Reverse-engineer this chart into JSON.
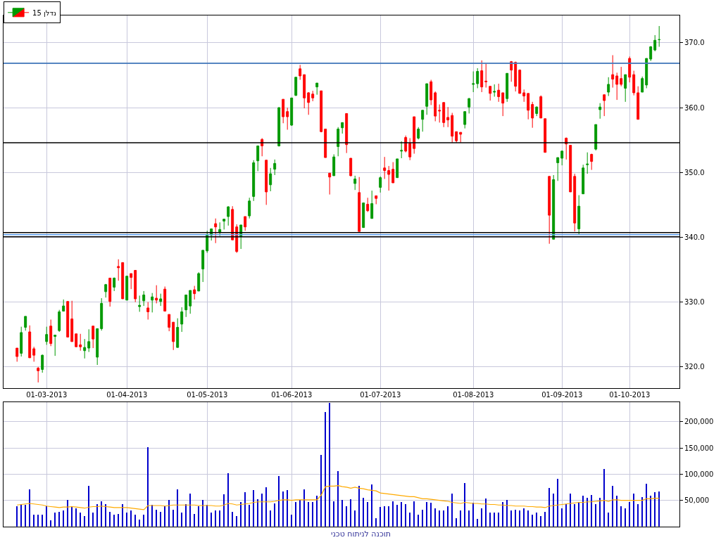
{
  "chart_data": [
    {
      "type": "candlestick",
      "legend": "top left",
      "grid": true,
      "categories": [
        null,
        null,
        null,
        null,
        null,
        null,
        null,
        "01-03-2013",
        null,
        null,
        null,
        null,
        null,
        null,
        null,
        null,
        null,
        null,
        null,
        null,
        null,
        null,
        null,
        null,
        null,
        null,
        "01-04-2013",
        null,
        null,
        null,
        null,
        null,
        null,
        null,
        null,
        null,
        null,
        null,
        null,
        null,
        null,
        null,
        null,
        null,
        null,
        "01-05-2013",
        null,
        null,
        null,
        null,
        null,
        null,
        null,
        null,
        null,
        null,
        null,
        null,
        null,
        null,
        null,
        null,
        null,
        null,
        null,
        "01-06-2013",
        null,
        null,
        null,
        null,
        null,
        null,
        null,
        null,
        null,
        null,
        null,
        null,
        null,
        null,
        null,
        null,
        null,
        null,
        null,
        null,
        "01-07-2013",
        null,
        null,
        null,
        null,
        null,
        null,
        null,
        null,
        null,
        null,
        null,
        null,
        null,
        null,
        null,
        null,
        null,
        null,
        null,
        null,
        null,
        "01-08-2013",
        null,
        null,
        null,
        null,
        null,
        null,
        null,
        null,
        null,
        null,
        null,
        null,
        null,
        null,
        null,
        null,
        null,
        null,
        null,
        null,
        "01-09-2013",
        null,
        null,
        null,
        null,
        null,
        null,
        null,
        null,
        null,
        null,
        null,
        null,
        null,
        null,
        null,
        "01-10-2013",
        null,
        null,
        null,
        null,
        null,
        null,
        null
      ],
      "ylim": [
        316.7,
        374.2
      ],
      "yticks": [
        {
          "value": 320,
          "label": "320.0"
        },
        {
          "value": 330,
          "label": "330.0"
        },
        {
          "value": 340,
          "label": "340.0"
        },
        {
          "value": 350,
          "label": "350.0"
        },
        {
          "value": 360,
          "label": "360.0"
        },
        {
          "value": 370,
          "label": "370.0"
        }
      ],
      "ref_lines": [
        {
          "axis": "y",
          "value": 366.85,
          "color": "#000000"
        },
        {
          "axis": "y",
          "value": 366.85,
          "color": "#5c9ded"
        },
        {
          "axis": "y",
          "value": 340.72,
          "color": "#000000"
        },
        {
          "axis": "y",
          "value": 340.4,
          "color": "#5c9ded"
        },
        {
          "axis": "y",
          "value": 340.07,
          "color": "#000000"
        },
        {
          "axis": "y",
          "value": 354.6,
          "color": "#000000"
        }
      ],
      "series": [
        {
          "name": "נדלן 15",
          "ohlc": [
            [
              322.9,
              322.9,
              320.8,
              321.6
            ],
            [
              322.1,
              326.2,
              321.6,
              325.3
            ],
            [
              326.1,
              327.8,
              325.6,
              327.8
            ],
            [
              325.4,
              326.4,
              321.4,
              321.4
            ],
            [
              322.8,
              323.1,
              320.8,
              321.8
            ],
            [
              319.8,
              320.0,
              317.6,
              319.4
            ],
            [
              319.6,
              321.9,
              319.1,
              321.8
            ],
            [
              323.9,
              326.2,
              323.4,
              325.0
            ],
            [
              326.3,
              327.3,
              323.2,
              323.6
            ],
            [
              324.7,
              324.9,
              321.7,
              324.9
            ],
            [
              325.6,
              328.8,
              325.4,
              328.5
            ],
            [
              328.6,
              330.4,
              328.6,
              329.4
            ],
            [
              330.1,
              330.1,
              324.6,
              324.6
            ],
            [
              327.4,
              330.2,
              323.9,
              323.9
            ],
            [
              325.1,
              325.1,
              323.1,
              323.1
            ],
            [
              323.4,
              325.1,
              322.5,
              323.1
            ],
            [
              322.5,
              324.3,
              321.3,
              323.0
            ],
            [
              322.9,
              325.8,
              322.3,
              323.9
            ],
            [
              326.3,
              326.3,
              322.9,
              324.3
            ],
            [
              321.5,
              325.9,
              320.3,
              325.9
            ],
            [
              325.9,
              330.6,
              325.6,
              329.8
            ],
            [
              331.6,
              332.8,
              330.7,
              332.7
            ],
            [
              333.7,
              333.7,
              329.3,
              330.1
            ],
            [
              332.3,
              333.8,
              331.7,
              333.7
            ],
            [
              335.5,
              336.6,
              333.3,
              335.3
            ],
            [
              336.1,
              336.1,
              330.5,
              330.5
            ],
            [
              330.3,
              334.0,
              330.3,
              334.0
            ],
            [
              334.4,
              334.4,
              332.0,
              333.8
            ],
            [
              334.9,
              334.9,
              330.0,
              330.5
            ],
            [
              329.3,
              331.0,
              328.5,
              329.5
            ],
            [
              330.2,
              331.7,
              329.4,
              331.1
            ],
            [
              329.1,
              330.0,
              327.3,
              328.5
            ],
            [
              330.3,
              331.4,
              328.4,
              330.8
            ],
            [
              330.6,
              332.6,
              329.8,
              330.3
            ],
            [
              330.1,
              331.3,
              329.4,
              330.5
            ],
            [
              332.0,
              332.4,
              328.6,
              328.6
            ],
            [
              328.1,
              328.1,
              325.5,
              326.1
            ],
            [
              326.9,
              326.9,
              322.6,
              323.9
            ],
            [
              323.0,
              327.5,
              323.0,
              326.1
            ],
            [
              326.6,
              329.2,
              325.4,
              328.5
            ],
            [
              328.8,
              331.1,
              327.7,
              331.1
            ],
            [
              329.4,
              331.8,
              328.2,
              331.8
            ],
            [
              331.9,
              332.5,
              330.4,
              331.3
            ],
            [
              331.7,
              334.6,
              331.7,
              334.4
            ],
            [
              335.1,
              338.0,
              333.1,
              338.0
            ],
            [
              337.9,
              341.0,
              337.6,
              340.4
            ],
            [
              340.3,
              341.3,
              339.5,
              341.3
            ],
            [
              342.1,
              342.9,
              339.1,
              341.6
            ],
            [
              340.8,
              342.3,
              340.2,
              341.2
            ],
            [
              342.5,
              342.8,
              341.2,
              342.8
            ],
            [
              343.2,
              344.8,
              341.8,
              344.7
            ],
            [
              344.3,
              344.8,
              339.6,
              339.6
            ],
            [
              341.6,
              342.0,
              337.6,
              337.8
            ],
            [
              340.1,
              341.9,
              338.2,
              341.9
            ],
            [
              343.2,
              343.2,
              341.0,
              341.6
            ],
            [
              343.3,
              346.1,
              342.9,
              345.6
            ],
            [
              346.3,
              351.9,
              345.6,
              351.5
            ],
            [
              351.8,
              354.1,
              350.2,
              354.1
            ],
            [
              355.1,
              355.3,
              352.5,
              354.1
            ],
            [
              351.9,
              351.9,
              345.0,
              347.0
            ],
            [
              348.1,
              350.7,
              347.1,
              349.8
            ],
            [
              350.5,
              352.0,
              349.6,
              351.4
            ],
            [
              354.1,
              360.1,
              354.0,
              360.0
            ],
            [
              361.3,
              361.3,
              357.6,
              358.6
            ],
            [
              359.4,
              360.0,
              356.6,
              358.6
            ],
            [
              357.3,
              361.5,
              357.2,
              361.5
            ],
            [
              361.9,
              364.7,
              361.8,
              364.7
            ],
            [
              366.0,
              366.6,
              364.3,
              364.9
            ],
            [
              365.1,
              365.1,
              359.9,
              361.5
            ],
            [
              362.3,
              362.4,
              358.9,
              360.8
            ],
            [
              362.1,
              362.6,
              361.0,
              361.5
            ],
            [
              363.2,
              363.8,
              362.0,
              363.8
            ],
            [
              362.6,
              362.6,
              356.2,
              356.3
            ],
            [
              356.7,
              356.7,
              352.3,
              352.3
            ],
            [
              349.9,
              349.9,
              346.6,
              349.3
            ],
            [
              349.5,
              352.8,
              349.5,
              352.4
            ],
            [
              354.0,
              357.0,
              352.5,
              356.7
            ],
            [
              356.9,
              357.7,
              356.0,
              357.7
            ],
            [
              359.1,
              359.1,
              353.0,
              354.3
            ],
            [
              352.2,
              352.2,
              349.4,
              349.5
            ],
            [
              348.3,
              349.5,
              347.3,
              349.0
            ],
            [
              346.9,
              349.3,
              340.9,
              340.9
            ],
            [
              341.5,
              345.3,
              341.5,
              345.3
            ],
            [
              345.1,
              346.1,
              343.9,
              344.1
            ],
            [
              342.9,
              347.2,
              342.9,
              345.2
            ],
            [
              346.4,
              346.4,
              345.1,
              346.0
            ],
            [
              347.7,
              349.4,
              346.9,
              349.2
            ],
            [
              350.7,
              352.4,
              349.0,
              350.3
            ],
            [
              350.3,
              351.0,
              347.2,
              349.7
            ],
            [
              350.5,
              351.6,
              348.4,
              348.4
            ],
            [
              349.2,
              352.1,
              349.2,
              352.1
            ],
            [
              353.3,
              354.8,
              352.2,
              353.4
            ],
            [
              355.4,
              355.7,
              353.1,
              353.3
            ],
            [
              354.5,
              355.3,
              351.9,
              352.4
            ],
            [
              358.6,
              358.6,
              352.9,
              353.7
            ],
            [
              355.3,
              357.0,
              355.1,
              356.7
            ],
            [
              358.2,
              359.6,
              356.3,
              359.6
            ],
            [
              360.2,
              363.7,
              358.9,
              363.7
            ],
            [
              364.0,
              364.3,
              360.4,
              361.2
            ],
            [
              362.3,
              362.5,
              357.9,
              358.7
            ],
            [
              359.6,
              360.5,
              357.7,
              359.5
            ],
            [
              360.8,
              360.8,
              357.0,
              357.7
            ],
            [
              358.5,
              360.1,
              357.0,
              358.1
            ],
            [
              358.8,
              359.2,
              354.6,
              355.6
            ],
            [
              356.3,
              356.3,
              354.6,
              354.9
            ],
            [
              356.2,
              356.2,
              354.6,
              355.9
            ],
            [
              357.4,
              359.4,
              356.8,
              359.4
            ],
            [
              360.1,
              361.5,
              359.1,
              361.4
            ],
            [
              363.6,
              365.6,
              362.4,
              363.7
            ],
            [
              363.7,
              366.1,
              363.0,
              365.6
            ],
            [
              365.7,
              367.3,
              362.4,
              363.2
            ],
            [
              364.1,
              366.8,
              363.1,
              364.0
            ],
            [
              363.3,
              363.3,
              361.1,
              362.2
            ],
            [
              362.4,
              363.6,
              361.7,
              362.5
            ],
            [
              362.7,
              363.7,
              360.9,
              361.7
            ],
            [
              362.3,
              362.3,
              358.7,
              360.7
            ],
            [
              361.4,
              365.3,
              360.9,
              365.3
            ],
            [
              367.1,
              367.2,
              364.0,
              365.8
            ],
            [
              367.0,
              367.1,
              362.5,
              363.3
            ],
            [
              365.8,
              365.9,
              362.2,
              362.2
            ],
            [
              362.3,
              362.8,
              360.9,
              361.8
            ],
            [
              362.2,
              362.2,
              358.2,
              359.6
            ],
            [
              360.5,
              360.9,
              356.9,
              358.4
            ],
            [
              359.1,
              360.2,
              358.7,
              360.1
            ],
            [
              361.7,
              361.9,
              358.4,
              358.4
            ],
            [
              358.3,
              358.3,
              353.1,
              353.1
            ],
            [
              349.4,
              349.4,
              339.0,
              343.4
            ],
            [
              339.7,
              349.6,
              339.7,
              348.9
            ],
            [
              351.5,
              352.3,
              348.7,
              352.3
            ],
            [
              352.2,
              353.4,
              351.1,
              353.3
            ],
            [
              355.3,
              355.4,
              352.0,
              354.4
            ],
            [
              354.2,
              354.2,
              347.0,
              347.0
            ],
            [
              349.4,
              349.8,
              340.9,
              342.2
            ],
            [
              341.3,
              346.5,
              340.4,
              344.8
            ],
            [
              346.7,
              351.2,
              346.7,
              350.7
            ],
            [
              351.2,
              353.1,
              349.8,
              351.3
            ],
            [
              352.8,
              352.9,
              350.4,
              351.7
            ],
            [
              353.6,
              357.4,
              353.4,
              357.4
            ],
            [
              359.7,
              360.7,
              358.3,
              360.1
            ],
            [
              362.0,
              362.0,
              358.7,
              361.1
            ],
            [
              362.4,
              364.7,
              361.8,
              363.6
            ],
            [
              365.1,
              368.1,
              363.1,
              364.4
            ],
            [
              364.9,
              365.4,
              361.2,
              363.6
            ],
            [
              364.5,
              366.3,
              363.3,
              363.6
            ],
            [
              363.0,
              365.1,
              360.9,
              365.1
            ],
            [
              367.6,
              367.9,
              363.9,
              364.7
            ],
            [
              365.1,
              365.7,
              361.9,
              362.3
            ],
            [
              362.3,
              363.3,
              358.2,
              358.2
            ],
            [
              362.4,
              364.8,
              362.4,
              364.5
            ],
            [
              363.5,
              367.6,
              363.0,
              367.6
            ],
            [
              367.5,
              369.5,
              367.2,
              369.4
            ],
            [
              368.9,
              371.2,
              368.7,
              370.4
            ],
            [
              370.5,
              372.6,
              369.4,
              370.5
            ]
          ]
        }
      ]
    },
    {
      "type": "bar",
      "grid": true,
      "tick_labels": "y",
      "categories": [
        null,
        null,
        null,
        null,
        null,
        null,
        null,
        null,
        null,
        null,
        null,
        null,
        null,
        null,
        null,
        null,
        null,
        null,
        null,
        null,
        null,
        null,
        null,
        null,
        null,
        null,
        null,
        null,
        null,
        null,
        null,
        null,
        null,
        null,
        null,
        null,
        null,
        null,
        null,
        null,
        null,
        null,
        null,
        null,
        null,
        null,
        null,
        null,
        null,
        null,
        null,
        null,
        null,
        null,
        null,
        null,
        null,
        null,
        null,
        null,
        null,
        null,
        null,
        null,
        null,
        null,
        null,
        null,
        null,
        null,
        null,
        null,
        null,
        null,
        null,
        null,
        null,
        null,
        null,
        null,
        null,
        null,
        null,
        null,
        null,
        null,
        null,
        null,
        null,
        null,
        null,
        null,
        null,
        null,
        null,
        null,
        null,
        null,
        null,
        null,
        null,
        null,
        null,
        null,
        null,
        null,
        null,
        null,
        null,
        null,
        null,
        null,
        null,
        null,
        null,
        null,
        null,
        null,
        null,
        null,
        null,
        null,
        null,
        null,
        null,
        null,
        null,
        null,
        null,
        null,
        null,
        null,
        null,
        null,
        null,
        null,
        null,
        null,
        null,
        null,
        null,
        null,
        null,
        null,
        null,
        null,
        null,
        null,
        null,
        null,
        null,
        null,
        null
      ],
      "ylim": [
        0,
        237000
      ],
      "yticks": [
        {
          "value": 50000,
          "label": "50,000"
        },
        {
          "value": 100000,
          "label": "100,000"
        },
        {
          "value": 150000,
          "label": "150,000"
        },
        {
          "value": 200000,
          "label": "200,000"
        }
      ],
      "annotations": [
        "תוכנה לניתוח טכני"
      ],
      "series": [
        {
          "color": "#0000cc",
          "values": [
            38000,
            42000,
            41000,
            71000,
            22000,
            23000,
            23000,
            39000,
            12000,
            27000,
            28000,
            31000,
            50000,
            38000,
            35000,
            27000,
            20000,
            78000,
            26000,
            43000,
            48000,
            43000,
            28000,
            22000,
            24000,
            42000,
            26000,
            31000,
            23000,
            13000,
            22000,
            151000,
            41000,
            32000,
            28000,
            38000,
            50000,
            32000,
            70000,
            26000,
            43000,
            63000,
            24000,
            38000,
            51000,
            41000,
            27000,
            30000,
            31000,
            61000,
            102000,
            28000,
            20000,
            46000,
            65000,
            41000,
            69000,
            52000,
            63000,
            74000,
            31000,
            44000,
            96000,
            66000,
            69000,
            23000,
            47000,
            51000,
            70000,
            47000,
            46000,
            59000,
            136000,
            218000,
            235000,
            48000,
            105000,
            50000,
            38000,
            52000,
            31000,
            78000,
            54000,
            47000,
            80000,
            16000,
            37000,
            39000,
            39000,
            48000,
            41000,
            46000,
            42000,
            27000,
            48000,
            23000,
            32000,
            46000,
            45000,
            35000,
            31000,
            30000,
            39000,
            62000,
            15000,
            30000,
            83000,
            31000,
            45000,
            14000,
            34000,
            53000,
            27000,
            26000,
            27000,
            47000,
            50000,
            31000,
            32000,
            30000,
            34000,
            31000,
            22000,
            26000,
            20000,
            28000,
            73000,
            62000,
            91000,
            34000,
            42000,
            62000,
            42000,
            47000,
            59000,
            55000,
            60000,
            43000,
            54000,
            109000,
            27000,
            77000,
            58000,
            39000,
            34000,
            47000,
            62000,
            42000,
            56000,
            81000,
            58000,
            65000,
            67000
          ]
        },
        {
          "type": "line",
          "color": "#ffaa00",
          "values": [
            41000,
            42000,
            43000,
            44000,
            43000,
            42000,
            41000,
            39000,
            38000,
            37000,
            36000,
            37000,
            37000,
            38000,
            37000,
            36000,
            35000,
            37000,
            38000,
            38000,
            39000,
            38000,
            37000,
            36000,
            36000,
            36000,
            36000,
            35000,
            34000,
            33000,
            32000,
            40000,
            40000,
            40000,
            40000,
            39000,
            40000,
            41000,
            41000,
            41000,
            41000,
            41000,
            41000,
            40000,
            40000,
            40000,
            40000,
            39000,
            39000,
            41000,
            44000,
            43000,
            41000,
            42000,
            43000,
            44000,
            46000,
            47000,
            47000,
            47000,
            47000,
            48000,
            50000,
            51000,
            51000,
            50000,
            51000,
            51000,
            51000,
            51000,
            51000,
            51000,
            60000,
            76000,
            77000,
            77000,
            78000,
            76000,
            75000,
            73000,
            75000,
            73000,
            72000,
            70000,
            69000,
            68000,
            64000,
            63000,
            62000,
            61000,
            60000,
            59000,
            58000,
            57000,
            57000,
            55000,
            53000,
            53000,
            52000,
            51000,
            50000,
            49000,
            48000,
            46000,
            45000,
            44000,
            46000,
            45000,
            44000,
            44000,
            43000,
            43000,
            42000,
            42000,
            41000,
            41000,
            40000,
            40000,
            39000,
            39000,
            39000,
            38000,
            38000,
            37000,
            37000,
            36000,
            39000,
            40000,
            41000,
            42000,
            43000,
            44000,
            45000,
            46000,
            46000,
            47000,
            47000,
            48000,
            49000,
            50000,
            48000,
            51000,
            51000,
            50000,
            50000,
            50000,
            50000,
            50000,
            50000,
            53000,
            53000,
            54000,
            54000
          ]
        }
      ]
    }
  ]
}
